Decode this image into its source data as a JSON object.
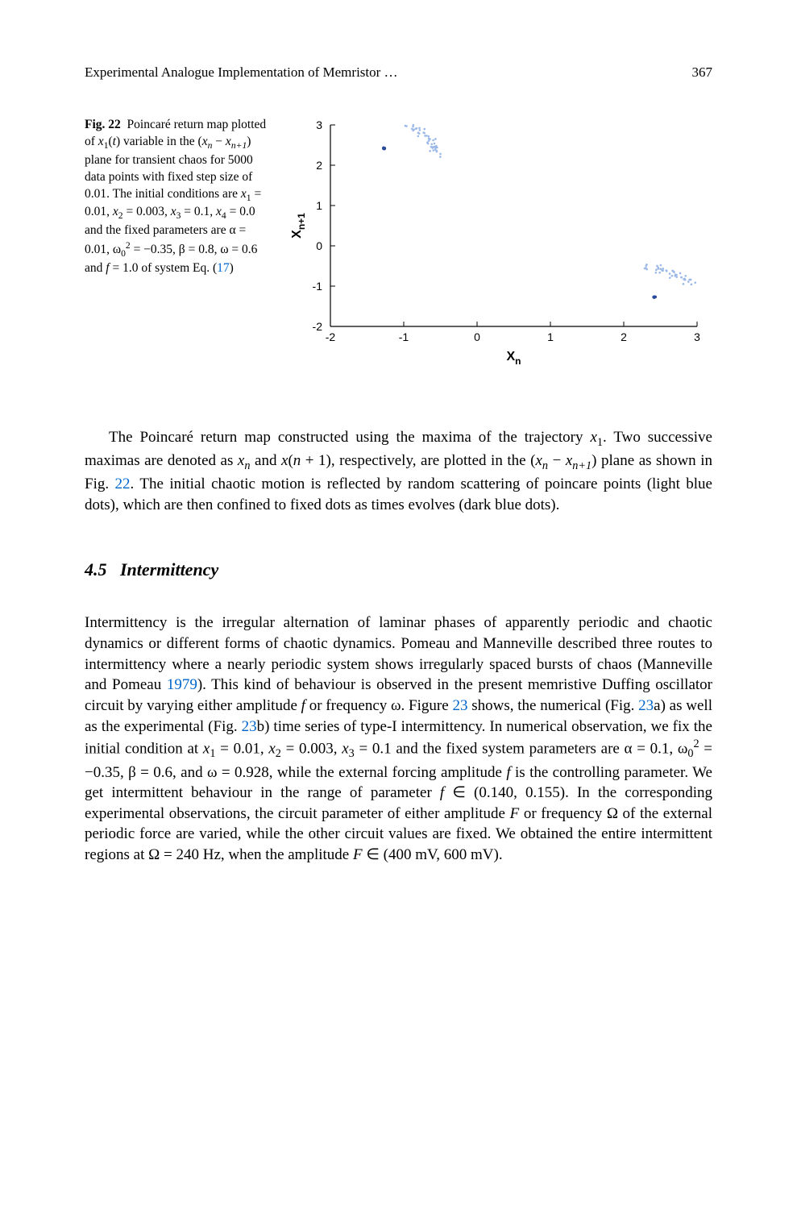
{
  "header": {
    "running_title": "Experimental Analogue Implementation of Memristor …",
    "page_number": "367"
  },
  "figure": {
    "label": "Fig. 22",
    "caption_html": "Poincaré return map plotted of <i>x</i><sub>1</sub>(<i>t</i>) variable in the (<i>x<sub>n</sub></i> − <i>x<sub>n+1</sub></i>) plane for transient chaos for 5000 data points with fixed step size of 0.01. The initial conditions are <i>x</i><sub>1</sub> = 0.01, <i>x</i><sub>2</sub> = 0.003, <i>x</i><sub>3</sub> = 0.1, <i>x</i><sub>4</sub> = 0.0 and the fixed parameters are α = 0.01, ω<sub>0</sub><sup>2</sup> = −0.35, β = 0.8, ω = 0.6 and <i>f</i> = 1.0 of system Eq. (<span class=\"link\">17</span>)",
    "chart": {
      "type": "scatter",
      "xlabel": "Xₙ",
      "ylabel": "Xₙ₊₁",
      "xlim": [
        -2,
        3
      ],
      "ylim": [
        -2,
        3
      ],
      "xticks": [
        -2,
        -1,
        0,
        1,
        2,
        3
      ],
      "yticks": [
        -2,
        -1,
        0,
        1,
        2,
        3
      ],
      "label_fontsize": 16,
      "tick_fontsize": 14,
      "background_color": "#ffffff",
      "axis_color": "#000000",
      "marker_radius_light": 1.3,
      "marker_radius_dark": 1.6,
      "light_color": "#9bb8e8",
      "dark_color": "#2b4a9b",
      "fixed_points_dark": [
        [
          -1.27,
          2.42
        ],
        [
          2.42,
          -1.27
        ]
      ],
      "approx_light_cluster1_center": [
        -0.55,
        2.3
      ],
      "approx_light_cluster2_center": [
        2.3,
        -0.55
      ],
      "approx_light_spread": 0.6,
      "approx_light_count_each": 120
    }
  },
  "paragraph1_html": "The Poincaré return map constructed using the maxima of the trajectory <i>x</i><sub>1</sub>. Two successive maximas are denoted as <i>x<sub>n</sub></i> and <i>x</i>(<i>n</i> + 1), respectively, are plotted in the (<i>x<sub>n</sub></i> − <i>x<sub>n+1</sub></i>) plane as shown in Fig. <span class=\"link\">22</span>. The initial chaotic motion is reflected by random scattering of poincare points (light blue dots), which are then confined to fixed dots as times evolves (dark blue dots).",
  "section": {
    "number": "4.5",
    "title": "Intermittency"
  },
  "paragraph2_html": "Intermittency is the irregular alternation of laminar phases of apparently periodic and chaotic dynamics or different forms of chaotic dynamics. Pomeau and Manneville described three routes to intermittency where a nearly periodic system shows irregularly spaced bursts of chaos (Manneville and Pomeau <span class=\"link\">1979</span>). This kind of behaviour is observed in the present memristive Duffing oscillator circuit by varying either amplitude <i>f</i> or frequency ω. Figure <span class=\"link\">23</span> shows, the numerical (Fig. <span class=\"link\">23</span>a) as well as the experimental (Fig. <span class=\"link\">23</span>b) time series of type-I intermittency. In numerical observation, we fix the initial condition at <i>x</i><sub>1</sub> = 0.01, <i>x</i><sub>2</sub> = 0.003, <i>x</i><sub>3</sub> = 0.1 and the fixed system parameters are α = 0.1, ω<sub>0</sub><sup>2</sup> = −0.35, β = 0.6, and ω = 0.928, while the external forcing amplitude <i>f</i> is the controlling parameter. We get intermittent behaviour in the range of parameter <i>f</i> ∈ (0.140, 0.155). In the corresponding experimental observations, the circuit parameter of either amplitude <i>F</i> or frequency Ω of the external periodic force are varied, while the other circuit values are fixed. We obtained the entire intermittent regions at Ω = 240 Hz, when the amplitude <i>F</i> ∈ (400 mV, 600 mV)."
}
